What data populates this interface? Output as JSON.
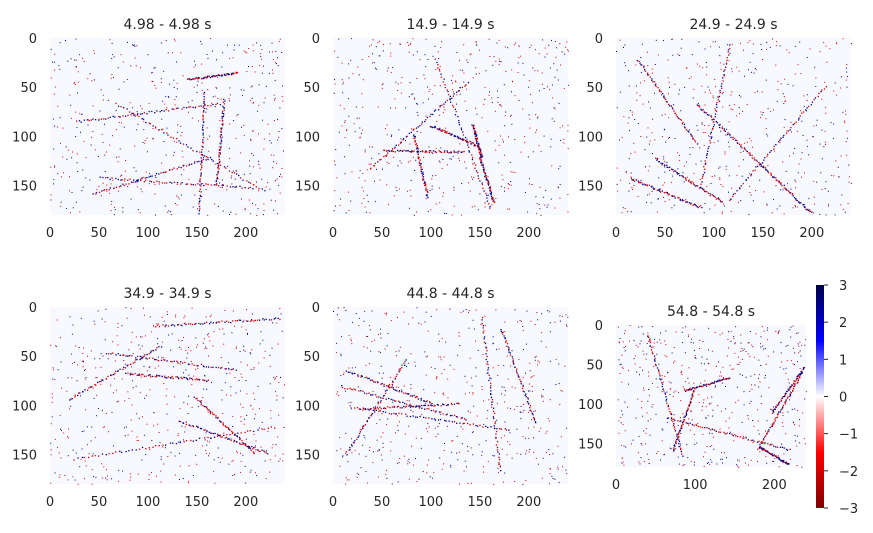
{
  "chart_data": {
    "type": "heatmap",
    "colormap": "seismic_r",
    "colorbar": {
      "min": -3,
      "max": 3,
      "ticks": [
        3,
        2,
        1,
        0,
        -1,
        -2,
        -3
      ],
      "tick_labels": [
        "3",
        "2",
        "1",
        "0",
        "−1",
        "−2",
        "−3"
      ],
      "colors": {
        "negative": "#d40000",
        "zero": "#ffffff",
        "positive": "#00008b"
      }
    },
    "grid": false,
    "panels": [
      {
        "title": "4.98 - 4.98 s",
        "xlim": [
          0,
          240
        ],
        "ylim": [
          0,
          180
        ],
        "xticks": [
          "0",
          "50",
          "100",
          "150",
          "200"
        ],
        "yticks": [
          "0",
          "50",
          "100",
          "150"
        ]
      },
      {
        "title": "14.9 - 14.9 s",
        "xlim": [
          0,
          240
        ],
        "ylim": [
          0,
          180
        ],
        "xticks": [
          "0",
          "50",
          "100",
          "150",
          "200"
        ],
        "yticks": [
          "0",
          "50",
          "100",
          "150"
        ]
      },
      {
        "title": "24.9 - 24.9 s",
        "xlim": [
          0,
          240
        ],
        "ylim": [
          0,
          180
        ],
        "xticks": [
          "0",
          "50",
          "100",
          "150",
          "200"
        ],
        "yticks": [
          "0",
          "50",
          "100",
          "150"
        ]
      },
      {
        "title": "34.9 - 34.9 s",
        "xlim": [
          0,
          240
        ],
        "ylim": [
          0,
          180
        ],
        "xticks": [
          "0",
          "50",
          "100",
          "150",
          "200"
        ],
        "yticks": [
          "0",
          "50",
          "100",
          "150"
        ]
      },
      {
        "title": "44.8 - 44.8 s",
        "xlim": [
          0,
          240
        ],
        "ylim": [
          0,
          180
        ],
        "xticks": [
          "0",
          "50",
          "100",
          "150",
          "200"
        ],
        "yticks": [
          "0",
          "50",
          "100",
          "150"
        ]
      },
      {
        "title": "54.8 - 54.8 s",
        "xlim": [
          0,
          240
        ],
        "ylim": [
          0,
          180
        ],
        "xticks": [
          "0",
          "100",
          "200"
        ],
        "yticks": [
          "0",
          "50",
          "100",
          "150"
        ]
      }
    ]
  }
}
